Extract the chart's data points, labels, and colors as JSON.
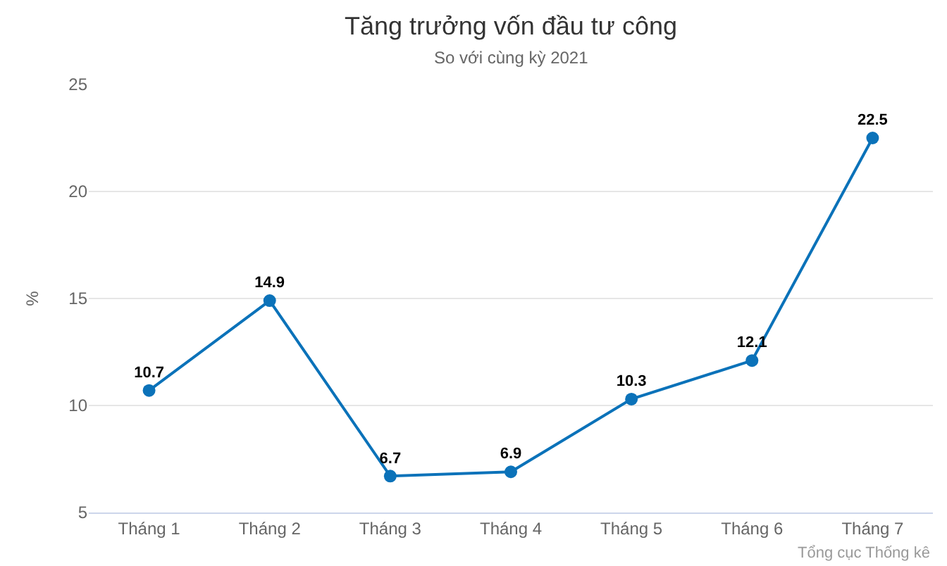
{
  "chart_data": {
    "type": "line",
    "title": "Tăng trưởng vốn đầu tư công",
    "subtitle": "So với cùng kỳ 2021",
    "ylabel": "%",
    "categories": [
      "Tháng 1",
      "Tháng 2",
      "Tháng 3",
      "Tháng 4",
      "Tháng 5",
      "Tháng 6",
      "Tháng 7"
    ],
    "series": [
      {
        "color": "#0b72b9",
        "values": [
          10.7,
          14.9,
          6.7,
          6.9,
          10.3,
          12.1,
          22.5
        ]
      }
    ],
    "ylim": [
      5,
      25
    ],
    "yticks": [
      5,
      10,
      15,
      20,
      25
    ],
    "grid": "y",
    "marker": "circle",
    "line_style": "solid",
    "data_labels": true,
    "annotations": [
      "Tổng cục Thống kê"
    ]
  }
}
